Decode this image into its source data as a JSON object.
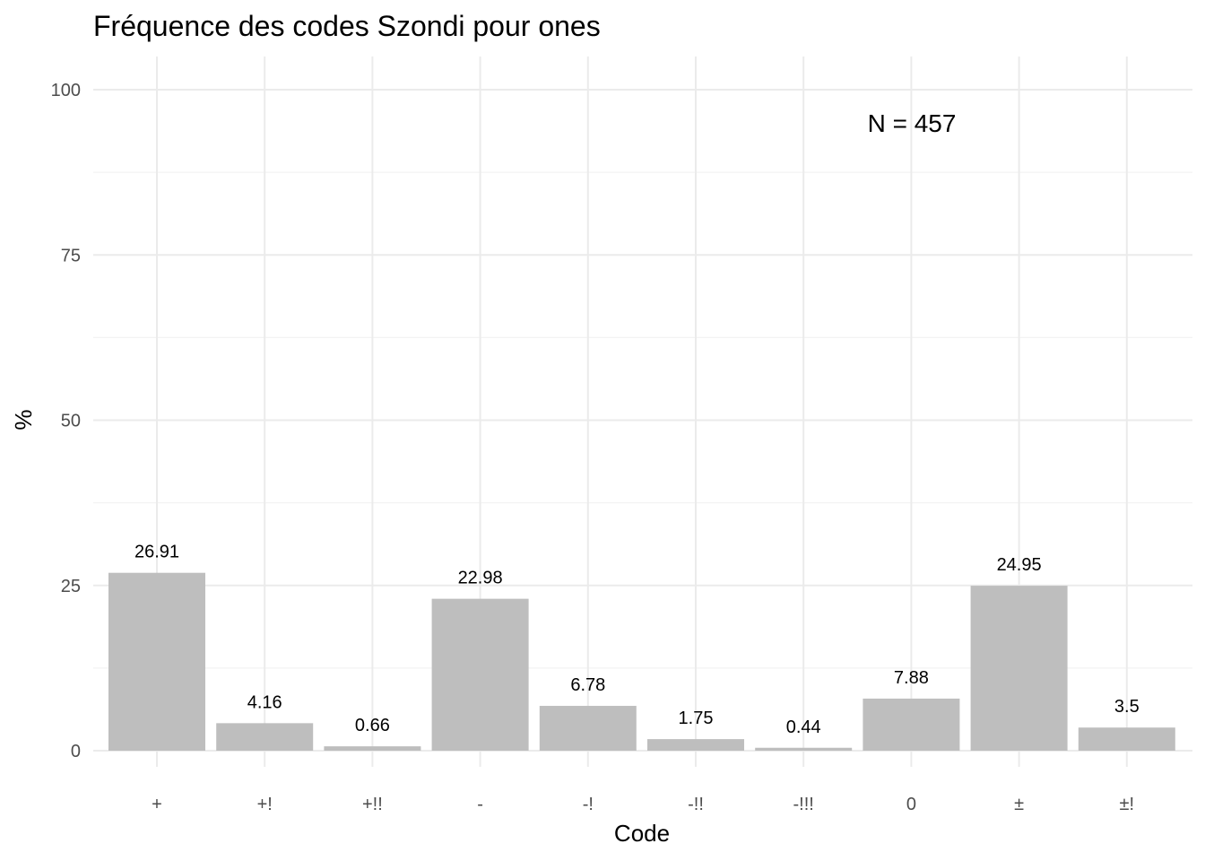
{
  "chart_data": {
    "type": "bar",
    "title": "Fréquence des codes Szondi pour ones",
    "xlabel": "Code",
    "ylabel": "%",
    "categories": [
      "+",
      "+!",
      "+!!",
      "-",
      "-!",
      "-!!",
      "-!!!",
      "0",
      "±",
      "±!"
    ],
    "values": [
      26.91,
      4.16,
      0.66,
      22.98,
      6.78,
      1.75,
      0.44,
      7.88,
      24.95,
      3.5
    ],
    "data_labels": [
      "26.91",
      "4.16",
      "0.66",
      "22.98",
      "6.78",
      "1.75",
      "0.44",
      "7.88",
      "24.95",
      "3.5"
    ],
    "ylim": [
      0,
      100
    ],
    "yticks": [
      0,
      25,
      50,
      75,
      100
    ],
    "annotation": "N = 457",
    "annotation_position": "top-right",
    "bar_color": "#bebebe",
    "grid": true,
    "legend": "none"
  }
}
